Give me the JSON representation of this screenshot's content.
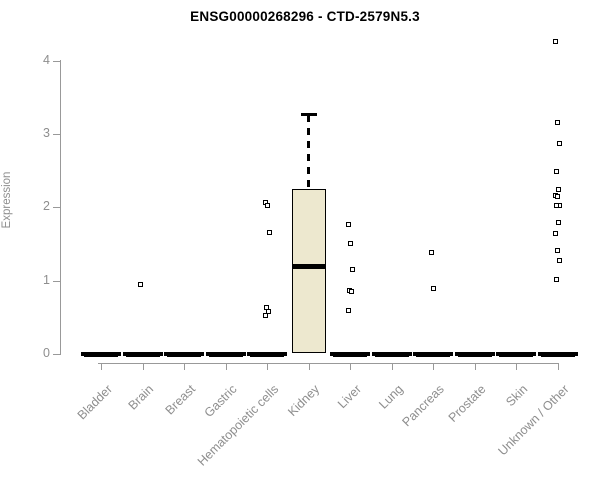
{
  "chart_data": {
    "type": "boxplot",
    "title": "ENSG00000268296 - CTD-2579N5.3",
    "ylabel": "Expression",
    "ylim": [
      0,
      4.3
    ],
    "yticks": [
      0,
      1,
      2,
      3,
      4
    ],
    "grid": false,
    "legend": "none",
    "categories": [
      "Bladder",
      "Brain",
      "Breast",
      "Gastric",
      "Hematopoietic cells",
      "Kidney",
      "Liver",
      "Lung",
      "Pancreas",
      "Prostate",
      "Skin",
      "Unknown / Other"
    ],
    "series": [
      {
        "category": "Bladder",
        "whisker_low": 0,
        "q1": 0,
        "median": 0,
        "q3": 0,
        "whisker_high": 0,
        "outliers": []
      },
      {
        "category": "Brain",
        "whisker_low": 0,
        "q1": 0,
        "median": 0,
        "q3": 0,
        "whisker_high": 0,
        "outliers": [
          0.95
        ]
      },
      {
        "category": "Breast",
        "whisker_low": 0,
        "q1": 0,
        "median": 0,
        "q3": 0,
        "whisker_high": 0,
        "outliers": []
      },
      {
        "category": "Gastric",
        "whisker_low": 0,
        "q1": 0,
        "median": 0,
        "q3": 0,
        "whisker_high": 0,
        "outliers": []
      },
      {
        "category": "Hematopoietic cells",
        "whisker_low": 0,
        "q1": 0,
        "median": 0,
        "q3": 0,
        "whisker_high": 0,
        "outliers": [
          2.07,
          2.02,
          1.66,
          0.64,
          0.58,
          0.53
        ]
      },
      {
        "category": "Kidney",
        "whisker_low": 0,
        "q1": 0.01,
        "median": 1.19,
        "q3": 2.25,
        "whisker_high": 3.28,
        "outliers": []
      },
      {
        "category": "Liver",
        "whisker_low": 0,
        "q1": 0,
        "median": 0,
        "q3": 0,
        "whisker_high": 0,
        "outliers": [
          1.76,
          1.51,
          1.15,
          0.87,
          0.85,
          0.6
        ]
      },
      {
        "category": "Lung",
        "whisker_low": 0,
        "q1": 0,
        "median": 0,
        "q3": 0,
        "whisker_high": 0,
        "outliers": []
      },
      {
        "category": "Pancreas",
        "whisker_low": 0,
        "q1": 0,
        "median": 0,
        "q3": 0,
        "whisker_high": 0,
        "outliers": [
          1.38,
          0.9
        ]
      },
      {
        "category": "Prostate",
        "whisker_low": 0,
        "q1": 0,
        "median": 0,
        "q3": 0,
        "whisker_high": 0,
        "outliers": []
      },
      {
        "category": "Skin",
        "whisker_low": 0,
        "q1": 0,
        "median": 0,
        "q3": 0,
        "whisker_high": 0,
        "outliers": []
      },
      {
        "category": "Unknown / Other",
        "whisker_low": 0,
        "q1": 0,
        "median": 0,
        "q3": 0,
        "whisker_high": 0,
        "outliers": [
          4.26,
          3.16,
          2.87,
          2.49,
          2.25,
          2.16,
          2.15,
          2.03,
          2.02,
          1.8,
          1.65,
          1.41,
          1.27,
          1.02
        ]
      }
    ],
    "colors": {
      "box_fill": "#EDE8CF",
      "box_border": "#000000",
      "median": "#000000",
      "axis_line": "#999999",
      "axis_text": "#8e8e8e",
      "title_text": "#000000"
    }
  }
}
